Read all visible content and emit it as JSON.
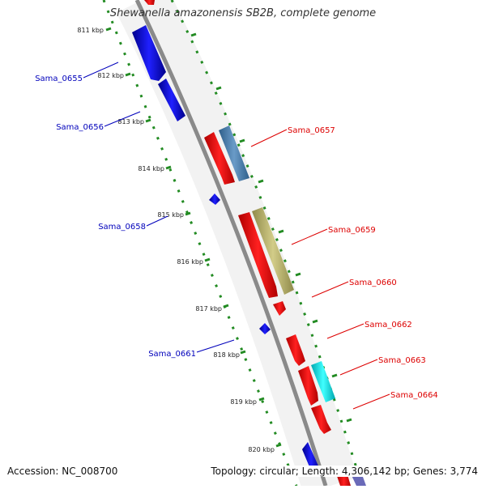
{
  "title": "Shewanella amazonensis SB2B, complete genome",
  "accession": "Accession: NC_008700",
  "summary": "Topology: circular; Length: 4,306,142 bp; Genes: 3,774",
  "kbp_labels": [
    "811 kbp",
    "812 kbp",
    "813 kbp",
    "814 kbp",
    "815 kbp",
    "816 kbp",
    "817 kbp",
    "818 kbp",
    "819 kbp",
    "820 kbp"
  ],
  "genes_left": [
    "Sama_0655",
    "Sama_0656",
    "Sama_0658",
    "Sama_0661"
  ],
  "genes_right": [
    "Sama_0657",
    "Sama_0659",
    "Sama_0660",
    "Sama_0662",
    "Sama_0663",
    "Sama_0664"
  ],
  "colors": {
    "left_labels": "#0000bb",
    "right_labels": "#dd0000",
    "backbone": "#888888",
    "tick_marks": "#228b22",
    "feature_blue": "#0000ee",
    "feature_red": "#ff0000",
    "feature_steelblue": "#4682b4",
    "feature_khaki": "#bdb76b",
    "feature_cyan": "#00e5ee"
  }
}
